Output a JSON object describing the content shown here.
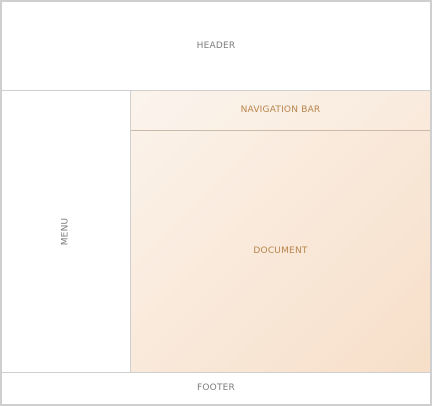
{
  "regions": {
    "header": "HEADER",
    "navigation_bar": "NAVIGATION BAR",
    "menu": "MENU",
    "document": "DOCUMENT",
    "footer": "FOOTER"
  },
  "colors": {
    "border": "#cfcfcf",
    "neutral_text": "#7d7d7d",
    "accent_text": "#b8844f",
    "accent_fill_start": "#fbf3eb",
    "accent_fill_end": "#f7dfc9"
  }
}
